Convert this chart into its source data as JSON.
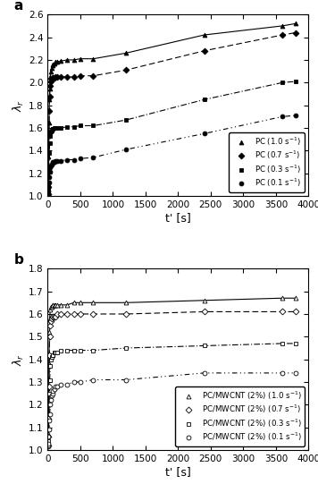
{
  "panel_a": {
    "title": "a",
    "ylabel": "$\\lambda_r$",
    "xlabel": "t' [s]",
    "xlim": [
      0,
      4000
    ],
    "ylim": [
      1.0,
      2.6
    ],
    "yticks": [
      1.0,
      1.2,
      1.4,
      1.6,
      1.8,
      2.0,
      2.2,
      2.4,
      2.6
    ],
    "xticks": [
      0,
      500,
      1000,
      1500,
      2000,
      2500,
      3000,
      3500,
      4000
    ],
    "series": [
      {
        "label": "PC (1.0 s$^{-1}$)",
        "marker": "^",
        "filled": true,
        "linestyle": "solid",
        "color": "black",
        "data_x": [
          5,
          10,
          15,
          20,
          25,
          30,
          40,
          50,
          60,
          70,
          80,
          100,
          120,
          150,
          200,
          300,
          400,
          500,
          700,
          1200,
          2400,
          3600,
          3800
        ],
        "data_y": [
          1.02,
          1.1,
          1.35,
          1.65,
          1.85,
          1.95,
          2.05,
          2.1,
          2.13,
          2.15,
          2.16,
          2.17,
          2.18,
          2.18,
          2.19,
          2.2,
          2.2,
          2.21,
          2.21,
          2.26,
          2.42,
          2.5,
          2.52
        ]
      },
      {
        "label": "PC (0.7 s$^{-1}$)",
        "marker": "D",
        "filled": true,
        "linestyle": "dashed",
        "color": "black",
        "data_x": [
          5,
          10,
          15,
          20,
          25,
          30,
          40,
          50,
          60,
          70,
          80,
          100,
          120,
          150,
          200,
          300,
          400,
          500,
          700,
          1200,
          2400,
          3600,
          3800
        ],
        "data_y": [
          1.02,
          1.08,
          1.25,
          1.55,
          1.75,
          1.88,
          1.97,
          2.01,
          2.03,
          2.04,
          2.04,
          2.04,
          2.05,
          2.05,
          2.05,
          2.05,
          2.05,
          2.06,
          2.06,
          2.11,
          2.28,
          2.42,
          2.44
        ]
      },
      {
        "label": "PC (0.3 s$^{-1}$)",
        "marker": "s",
        "filled": true,
        "linestyle": "dashdot",
        "color": "black",
        "data_x": [
          5,
          10,
          15,
          20,
          25,
          30,
          40,
          50,
          60,
          70,
          80,
          100,
          120,
          150,
          200,
          300,
          400,
          500,
          700,
          1200,
          2400,
          3600,
          3800
        ],
        "data_y": [
          1.02,
          1.05,
          1.12,
          1.25,
          1.38,
          1.47,
          1.53,
          1.57,
          1.58,
          1.59,
          1.59,
          1.6,
          1.6,
          1.6,
          1.6,
          1.61,
          1.61,
          1.62,
          1.62,
          1.67,
          1.85,
          2.0,
          2.01
        ]
      },
      {
        "label": "PC (0.1 s$^{-1}$)",
        "marker": "o",
        "filled": true,
        "linestyle": "loosedash",
        "color": "black",
        "data_x": [
          5,
          10,
          15,
          20,
          25,
          30,
          40,
          50,
          60,
          70,
          80,
          100,
          120,
          150,
          200,
          300,
          400,
          500,
          700,
          1200,
          2400,
          3600,
          3800
        ],
        "data_y": [
          1.02,
          1.04,
          1.08,
          1.12,
          1.17,
          1.21,
          1.25,
          1.27,
          1.28,
          1.29,
          1.3,
          1.3,
          1.31,
          1.31,
          1.31,
          1.32,
          1.32,
          1.33,
          1.34,
          1.41,
          1.55,
          1.7,
          1.71
        ]
      }
    ]
  },
  "panel_b": {
    "title": "b",
    "ylabel": "$\\lambda_r$",
    "xlabel": "t' [s]",
    "xlim": [
      0,
      4000
    ],
    "ylim": [
      1.0,
      1.8
    ],
    "yticks": [
      1.0,
      1.1,
      1.2,
      1.3,
      1.4,
      1.5,
      1.6,
      1.7,
      1.8
    ],
    "xticks": [
      0,
      500,
      1000,
      1500,
      2000,
      2500,
      3000,
      3500,
      4000
    ],
    "series": [
      {
        "label": "PC/MWCNT (2%) (1.0 s$^{-1}$)",
        "marker": "^",
        "filled": false,
        "linestyle": "solid",
        "color": "black",
        "data_x": [
          5,
          10,
          15,
          20,
          25,
          30,
          40,
          50,
          60,
          70,
          80,
          100,
          120,
          150,
          200,
          300,
          400,
          500,
          700,
          1200,
          2400,
          3600,
          3800
        ],
        "data_y": [
          1.02,
          1.07,
          1.2,
          1.38,
          1.52,
          1.58,
          1.62,
          1.63,
          1.63,
          1.64,
          1.64,
          1.64,
          1.64,
          1.64,
          1.64,
          1.64,
          1.65,
          1.65,
          1.65,
          1.65,
          1.66,
          1.67,
          1.67
        ]
      },
      {
        "label": "PC/MWCNT (2%) (0.7 s$^{-1}$)",
        "marker": "D",
        "filled": false,
        "linestyle": "dashed",
        "color": "black",
        "data_x": [
          5,
          10,
          15,
          20,
          25,
          30,
          40,
          50,
          60,
          70,
          80,
          100,
          120,
          150,
          200,
          300,
          400,
          500,
          700,
          1200,
          2400,
          3600,
          3800
        ],
        "data_y": [
          1.02,
          1.06,
          1.14,
          1.28,
          1.42,
          1.5,
          1.55,
          1.57,
          1.58,
          1.59,
          1.59,
          1.59,
          1.59,
          1.6,
          1.6,
          1.6,
          1.6,
          1.6,
          1.6,
          1.6,
          1.61,
          1.61,
          1.61
        ]
      },
      {
        "label": "PC/MWCNT (2%) (0.3 s$^{-1}$)",
        "marker": "s",
        "filled": false,
        "linestyle": "dashdot",
        "color": "black",
        "data_x": [
          5,
          10,
          15,
          20,
          25,
          30,
          40,
          50,
          60,
          70,
          80,
          100,
          120,
          150,
          200,
          300,
          400,
          500,
          700,
          1200,
          2400,
          3600,
          3800
        ],
        "data_y": [
          1.02,
          1.04,
          1.09,
          1.16,
          1.25,
          1.31,
          1.37,
          1.4,
          1.41,
          1.42,
          1.42,
          1.43,
          1.43,
          1.43,
          1.44,
          1.44,
          1.44,
          1.44,
          1.44,
          1.45,
          1.46,
          1.47,
          1.47
        ]
      },
      {
        "label": "PC/MWCNT (2%) (0.1 s$^{-1}$)",
        "marker": "o",
        "filled": false,
        "linestyle": "loosedash",
        "color": "black",
        "data_x": [
          5,
          10,
          15,
          20,
          25,
          30,
          40,
          50,
          60,
          70,
          80,
          100,
          120,
          150,
          200,
          300,
          400,
          500,
          700,
          1200,
          2400,
          3600,
          3800
        ],
        "data_y": [
          1.02,
          1.03,
          1.06,
          1.09,
          1.13,
          1.16,
          1.2,
          1.22,
          1.24,
          1.25,
          1.26,
          1.27,
          1.28,
          1.28,
          1.29,
          1.29,
          1.3,
          1.3,
          1.31,
          1.31,
          1.34,
          1.34,
          1.34
        ]
      }
    ]
  }
}
